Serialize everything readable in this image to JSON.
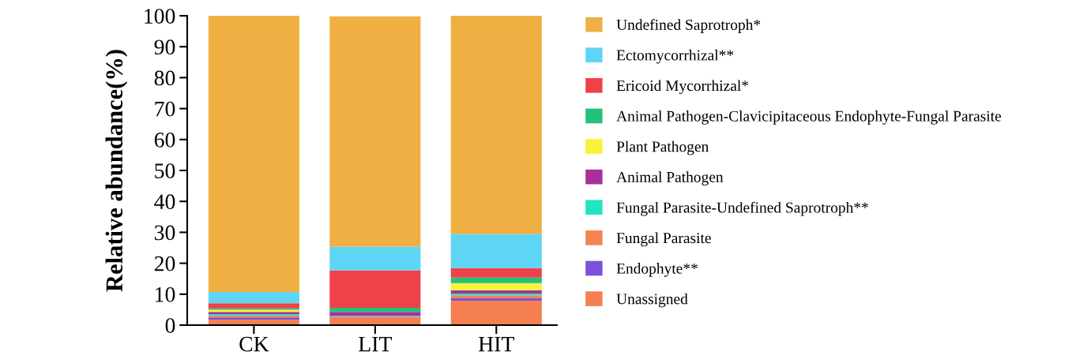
{
  "chart_data": {
    "type": "bar",
    "stacked": true,
    "ylabel": "Relative abundance(%)",
    "categories": [
      "CK",
      "LIT",
      "HIT"
    ],
    "ylim": [
      0,
      100
    ],
    "yticks": [
      0,
      10,
      20,
      30,
      40,
      50,
      60,
      70,
      80,
      90,
      100
    ],
    "grid": false,
    "legend": "right",
    "series": [
      {
        "name": "Unassigned",
        "color": "#f47f50",
        "values": [
          1.7,
          2.4,
          7.9
        ]
      },
      {
        "name": "Endophyte**",
        "color": "#7c50d8",
        "values": [
          0.8,
          0.2,
          0.8
        ]
      },
      {
        "name": "Fungal Parasite",
        "color": "#f38452",
        "values": [
          0.6,
          0.2,
          0.9
        ]
      },
      {
        "name": "Fungal Parasite-Undefined Saprotroph**",
        "color": "#1fe5c0",
        "values": [
          0.5,
          0.2,
          0.6
        ]
      },
      {
        "name": "Animal Pathogen",
        "color": "#a8309a",
        "values": [
          0.7,
          1.3,
          1.1
        ]
      },
      {
        "name": "Plant Pathogen",
        "color": "#f8f33a",
        "values": [
          0.7,
          null,
          2.3
        ]
      },
      {
        "name": "Animal Pathogen-Clavicipitaceous Endophyte-Fungal Parasite",
        "color": "#22c27a",
        "values": [
          0.4,
          1.3,
          1.8
        ]
      },
      {
        "name": "Ericoid Mycorrhizal*",
        "color": "#ef4149",
        "values": [
          1.7,
          12.1,
          3.0
        ]
      },
      {
        "name": "Ectomycorrhizal**",
        "color": "#5fd5f5",
        "values": [
          3.6,
          7.7,
          11.0
        ]
      },
      {
        "name": "Undefined Saprotroph*",
        "color": "#efaf42",
        "values": [
          89.3,
          74.4,
          70.6
        ]
      }
    ]
  }
}
